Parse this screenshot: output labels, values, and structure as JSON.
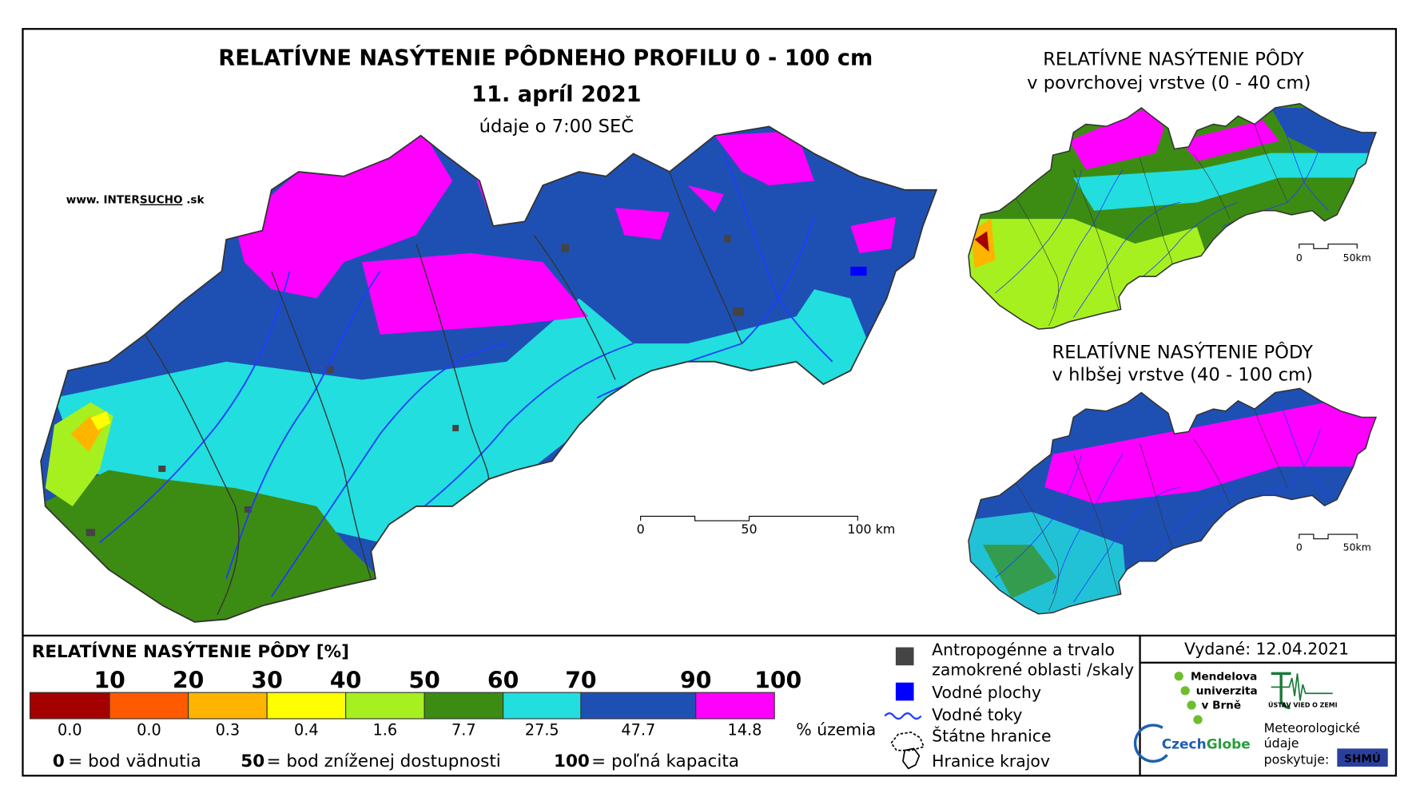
{
  "header": {
    "title": "RELATÍVNE NASÝTENIE PÔDNEHO PROFILU 0 - 100 cm",
    "date": "11. apríl 2021",
    "time_note": "údaje o 7:00 SEČ"
  },
  "website": {
    "prefix": "www. INTER",
    "highlight": "SUCHO",
    "suffix": " .sk"
  },
  "main_scale": [
    "0",
    "50",
    "100 km"
  ],
  "inset_top": {
    "title": "RELATÍVNE NASÝTENIE PÔDY",
    "subtitle": "v povrchovej vrstve (0 - 40 cm)",
    "scale": [
      "0",
      "50km"
    ]
  },
  "inset_bottom": {
    "title": "RELATÍVNE NASÝTENIE PÔDY",
    "subtitle": "v hlbšej vrstve (40 - 100 cm)",
    "scale": [
      "0",
      "50km"
    ]
  },
  "legend": {
    "title": "RELATÍVNE NASÝTENIE PÔDY [%]",
    "thresholds": [
      10,
      20,
      30,
      40,
      50,
      60,
      70,
      90,
      100
    ],
    "colors": [
      "#a50000",
      "#ff5a00",
      "#ffb400",
      "#ffff00",
      "#a6f020",
      "#3c8c14",
      "#22dede",
      "#1e50b4",
      "#ff00ff"
    ],
    "shares": [
      "0.0",
      "0.0",
      "0.3",
      "0.4",
      "1.6",
      "7.7",
      "27.5",
      "47.7",
      "14.8"
    ],
    "share_unit": "% územia",
    "notes": [
      {
        "value": "0",
        "text": "= bod vädnutia"
      },
      {
        "value": "50",
        "text": "= bod zníženej dostupnosti"
      },
      {
        "value": "100",
        "text": "= poľná kapacita"
      }
    ]
  },
  "symbols": {
    "anthropogenic": [
      "Antropogénne a trvalo",
      "zamokrené oblasti /skaly"
    ],
    "water_areas": "Vodné plochy",
    "rivers": "Vodné toky",
    "state_border": "Štátne hranice",
    "regional_border": "Hranice krajov"
  },
  "issued": "Vydané: 12.04.2021",
  "logos": {
    "mendel": [
      "Mendelova",
      "univerzita",
      "v Brně"
    ],
    "uvz": "ÚSTAV VIED O ZEMI",
    "czechglobe": [
      "Czech",
      "Globe"
    ],
    "meteo": [
      "Meteorologické",
      "údaje",
      "poskytuje:"
    ],
    "shmu": "SHMÚ"
  }
}
